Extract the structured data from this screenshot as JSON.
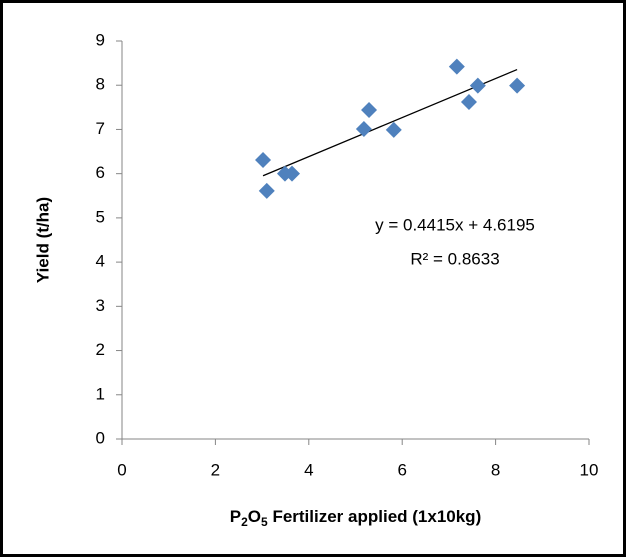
{
  "chart_data": {
    "type": "scatter",
    "x": [
      3.02,
      3.1,
      3.49,
      3.64,
      5.18,
      5.29,
      5.82,
      7.17,
      7.43,
      7.62,
      8.46
    ],
    "values": [
      6.31,
      5.61,
      6.0,
      6.0,
      7.01,
      7.44,
      6.99,
      8.42,
      7.62,
      7.99,
      7.99
    ],
    "color": "#4f81bd",
    "xlim": [
      0,
      10
    ],
    "xticks": [
      0,
      2,
      4,
      6,
      8,
      10
    ],
    "ylim": [
      0,
      9
    ],
    "yticks": [
      0,
      1,
      2,
      3,
      4,
      5,
      6,
      7,
      8,
      9
    ],
    "ylabel": "Yield (t/ha)",
    "xlabel_parts": [
      {
        "text": "P"
      },
      {
        "text": "2",
        "sub": true
      },
      {
        "text": "O"
      },
      {
        "text": "5",
        "sub": true
      },
      {
        "text": " Fertilizer applied (1x10kg)"
      }
    ],
    "trendline": {
      "slope": 0.4415,
      "intercept": 4.6195,
      "equation": "y = 0.4415x + 4.6195",
      "r2": "R² = 0.8633"
    }
  }
}
